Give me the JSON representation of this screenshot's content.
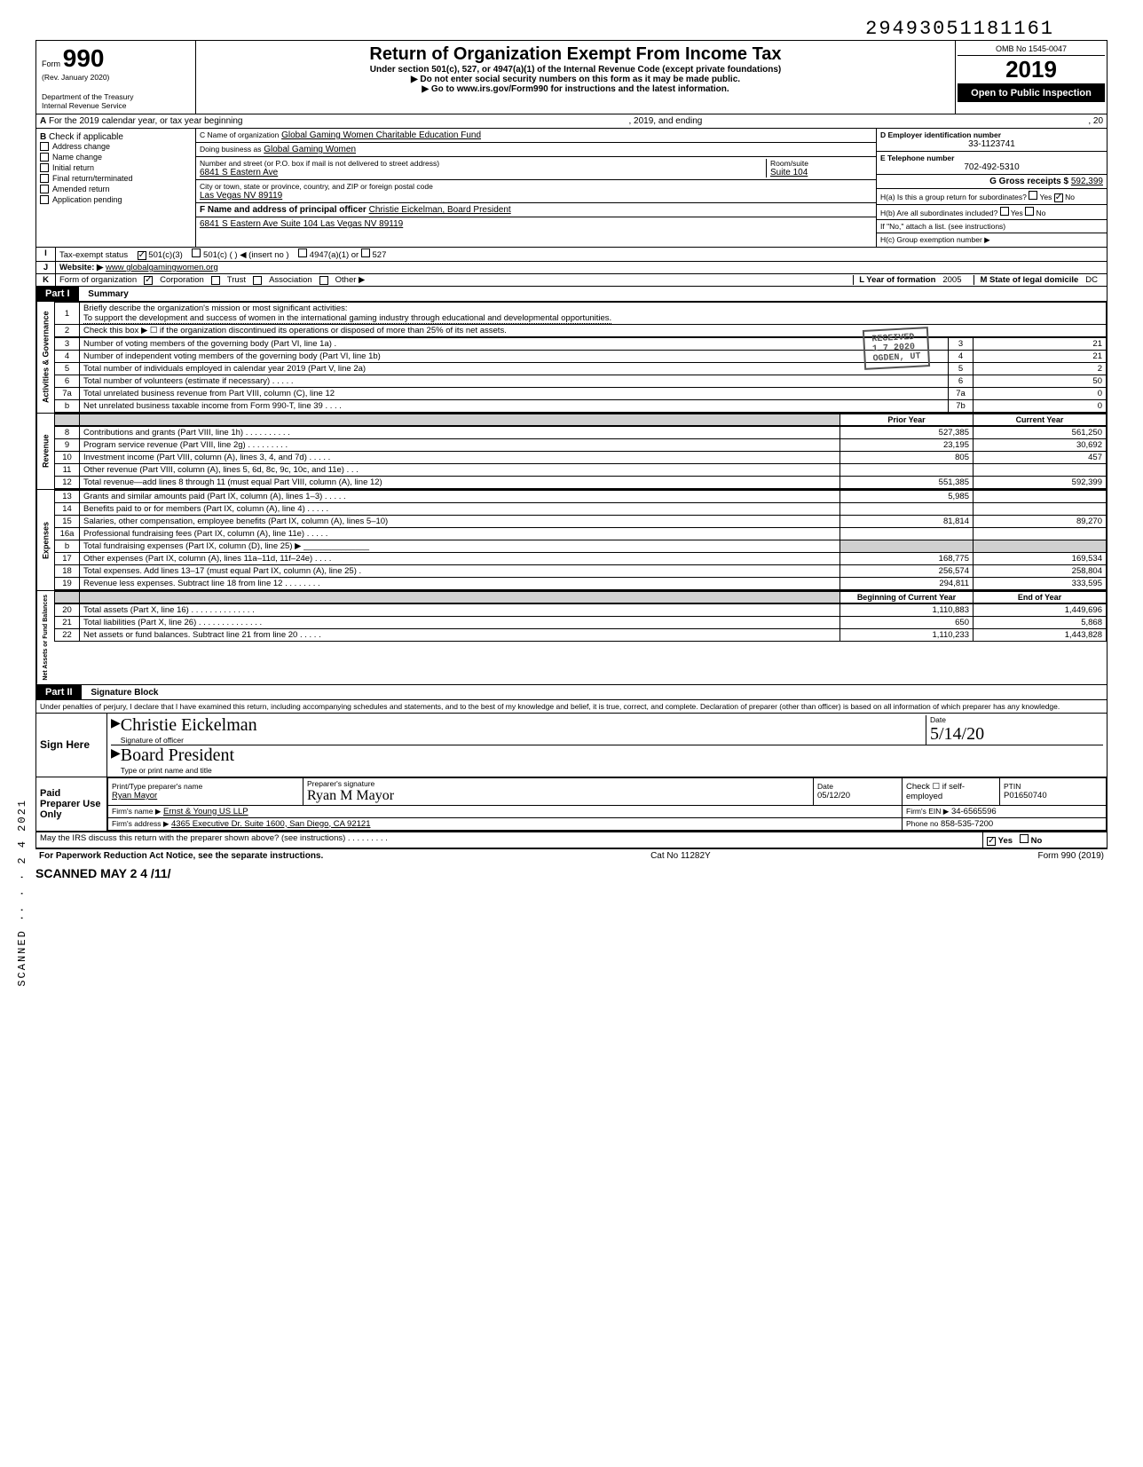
{
  "top_number": "29493051181161",
  "form": {
    "number": "990",
    "label": "Form",
    "rev": "(Rev. January 2020)",
    "dept": "Department of the Treasury",
    "irs": "Internal Revenue Service"
  },
  "title": "Return of Organization Exempt From Income Tax",
  "subtitle1": "Under section 501(c), 527, or 4947(a)(1) of the Internal Revenue Code (except private foundations)",
  "subtitle2": "▶ Do not enter social security numbers on this form as it may be made public.",
  "subtitle3": "▶ Go to www.irs.gov/Form990 for instructions and the latest information.",
  "omb": "OMB No 1545-0047",
  "year": "2019",
  "open_public": "Open to Public Inspection",
  "rowA": {
    "label": "A",
    "text": "For the 2019 calendar year, or tax year beginning",
    "mid": ", 2019, and ending",
    "end": ", 20"
  },
  "b": {
    "label": "B",
    "check_label": "Check if applicable",
    "items": [
      "Address change",
      "Name change",
      "Initial return",
      "Final return/terminated",
      "Amended return",
      "Application pending"
    ]
  },
  "c": {
    "name_label": "C Name of organization",
    "name": "Global Gaming Women Charitable Education Fund",
    "dba_label": "Doing business as",
    "dba": "Global Gaming Women",
    "street_label": "Number and street (or P.O. box if mail is not delivered to street address)",
    "street": "6841 S Eastern Ave",
    "room_label": "Room/suite",
    "room": "Suite 104",
    "city_label": "City or town, state or province, country, and ZIP or foreign postal code",
    "city": "Las Vegas NV 89119"
  },
  "d": {
    "label": "D Employer identification number",
    "value": "33-1123741"
  },
  "e": {
    "label": "E Telephone number",
    "value": "702-492-5310"
  },
  "g": {
    "label": "G Gross receipts $",
    "value": "592,399"
  },
  "f": {
    "label": "F Name and address of principal officer",
    "name": "Christie Eickelman, Board President",
    "addr": "6841 S Eastern Ave Suite 104 Las Vegas NV 89119"
  },
  "h": {
    "a": "H(a) Is this a group return for subordinates?",
    "a_no": true,
    "b": "H(b) Are all subordinates included?",
    "b_note": "If \"No,\" attach a list. (see instructions)",
    "c": "H(c) Group exemption number ▶"
  },
  "i": {
    "label": "I",
    "tax_exempt": "Tax-exempt status",
    "c3": "501(c)(3)",
    "c": "501(c) (",
    "insert": ") ◀ (insert no )",
    "a1": "4947(a)(1) or",
    "s527": "527"
  },
  "j": {
    "label": "J",
    "website_label": "Website: ▶",
    "website": "www globalgamingwomen.org"
  },
  "k": {
    "label": "K",
    "form_org": "Form of organization",
    "corp": "Corporation",
    "trust": "Trust",
    "assoc": "Association",
    "other": "Other ▶",
    "l_label": "L Year of formation",
    "l_val": "2005",
    "m_label": "M State of legal domicile",
    "m_val": "DC"
  },
  "part1": {
    "title": "Part I",
    "title2": "Summary",
    "line1_label": "Briefly describe the organization's mission or most significant activities:",
    "line1_text": "To support the development and success of women in the international gaming industry through educational and developmental opportunities.",
    "line2": "Check this box ▶ ☐ if the organization discontinued its operations or disposed of more than 25% of its net assets.",
    "stamp1": "RECEIVED",
    "stamp2": "1 7 2020",
    "stamp3": "OGDEN, UT",
    "rows_gov": [
      {
        "n": "3",
        "t": "Number of voting members of the governing body (Part VI, line 1a) .",
        "r": "3",
        "v": "21"
      },
      {
        "n": "4",
        "t": "Number of independent voting members of the governing body (Part VI, line 1b)",
        "r": "4",
        "v": "21"
      },
      {
        "n": "5",
        "t": "Total number of individuals employed in calendar year 2019 (Part V, line 2a)",
        "r": "5",
        "v": "2"
      },
      {
        "n": "6",
        "t": "Total number of volunteers (estimate if necessary)  .  .  .  .  .",
        "r": "6",
        "v": "50"
      },
      {
        "n": "7a",
        "t": "Total unrelated business revenue from Part VIII, column (C), line 12",
        "r": "7a",
        "v": "0"
      },
      {
        "n": "b",
        "t": "Net unrelated business taxable income from Form 990-T, line 39  .  .  .  .",
        "r": "7b",
        "v": "0"
      }
    ],
    "col_headers": [
      "Prior Year",
      "Current Year"
    ],
    "revenue_label": "Revenue",
    "revenue": [
      {
        "n": "8",
        "t": "Contributions and grants (Part VIII, line 1h) .  .  .  .  .  .  .  .  .  .",
        "p": "527,385",
        "c": "561,250"
      },
      {
        "n": "9",
        "t": "Program service revenue (Part VIII, line 2g)  .  .  .  .  .  .  .  .  .",
        "p": "23,195",
        "c": "30,692"
      },
      {
        "n": "10",
        "t": "Investment income (Part VIII, column (A), lines 3, 4, and 7d)  .  .  .  .  .",
        "p": "805",
        "c": "457"
      },
      {
        "n": "11",
        "t": "Other revenue (Part VIII, column (A), lines 5, 6d, 8c, 9c, 10c, and 11e) .  .  .",
        "p": "",
        "c": ""
      },
      {
        "n": "12",
        "t": "Total revenue—add lines 8 through 11 (must equal Part VIII, column (A), line 12)",
        "p": "551,385",
        "c": "592,399"
      }
    ],
    "expenses_label": "Expenses",
    "expenses": [
      {
        "n": "13",
        "t": "Grants and similar amounts paid (Part IX, column (A), lines 1–3) .  .  .  .  .",
        "p": "5,985",
        "c": ""
      },
      {
        "n": "14",
        "t": "Benefits paid to or for members (Part IX, column (A), line 4)  .  .  .  .  .",
        "p": "",
        "c": ""
      },
      {
        "n": "15",
        "t": "Salaries, other compensation, employee benefits (Part IX, column (A), lines 5–10)",
        "p": "81,814",
        "c": "89,270"
      },
      {
        "n": "16a",
        "t": "Professional fundraising fees (Part IX, column (A), line 11e)  .  .  .  .  .",
        "p": "",
        "c": ""
      },
      {
        "n": "b",
        "t": "Total fundraising expenses (Part IX, column (D), line 25) ▶ ______________",
        "p": "shade",
        "c": "shade"
      },
      {
        "n": "17",
        "t": "Other expenses (Part IX, column (A), lines 11a–11d, 11f–24e)  .  .  .  .",
        "p": "168,775",
        "c": "169,534"
      },
      {
        "n": "18",
        "t": "Total expenses. Add lines 13–17 (must equal Part IX, column (A), line 25)  .",
        "p": "256,574",
        "c": "258,804"
      },
      {
        "n": "19",
        "t": "Revenue less expenses. Subtract line 18 from line 12 .  .  .  .  .  .  .  .",
        "p": "294,811",
        "c": "333,595"
      }
    ],
    "net_label": "Net Assets or Fund Balances",
    "net_headers": [
      "Beginning of Current Year",
      "End of Year"
    ],
    "net": [
      {
        "n": "20",
        "t": "Total assets (Part X, line 16)  .  .  .  .  .  .  .  .  .  .  .  .  .  .",
        "p": "1,110,883",
        "c": "1,449,696"
      },
      {
        "n": "21",
        "t": "Total liabilities (Part X, line 26) .  .  .  .  .  .  .  .  .  .  .  .  .  .",
        "p": "650",
        "c": "5,868"
      },
      {
        "n": "22",
        "t": "Net assets or fund balances. Subtract line 21 from line 20  .  .  .  .  .",
        "p": "1,110,233",
        "c": "1,443,828"
      }
    ]
  },
  "part2": {
    "title": "Part II",
    "title2": "Signature Block",
    "perjury": "Under penalties of perjury, I declare that I have examined this return, including accompanying schedules and statements, and to the best of my knowledge and belief, it is true, correct, and complete. Declaration of preparer (other than officer) is based on all information of which preparer has any knowledge.",
    "sign_here": "Sign Here",
    "sig_officer_label": "Signature of officer",
    "sig_officer": "Christie Eickelman",
    "sig_date_label": "Date",
    "sig_date": "5/14/20",
    "title_label": "Type or print name and title",
    "title_val": "Board President",
    "paid_prep": "Paid Preparer Use Only",
    "prep_name_label": "Print/Type preparer's name",
    "prep_name": "Ryan Mayor",
    "prep_sig_label": "Preparer's signature",
    "prep_sig": "Ryan M Mayor",
    "prep_date_label": "Date",
    "prep_date": "05/12/20",
    "check_self": "Check ☐ if self-employed",
    "ptin_label": "PTIN",
    "ptin": "P01650740",
    "firm_name_label": "Firm's name ▶",
    "firm_name": "Ernst & Young US LLP",
    "firm_ein_label": "Firm's EIN ▶",
    "firm_ein": "34-6565596",
    "firm_addr_label": "Firm's address ▶",
    "firm_addr": "4365 Executive Dr. Suite 1600, San Diego, CA 92121",
    "phone_label": "Phone no",
    "phone": "858-535-7200",
    "may_irs": "May the IRS discuss this return with the preparer shown above? (see instructions)  .  .  .  .  .  .  .  .  .",
    "yes": "Yes",
    "no": "No"
  },
  "footer": {
    "paperwork": "For Paperwork Reduction Act Notice, see the separate instructions.",
    "cat": "Cat No 11282Y",
    "form": "Form 990 (2019)"
  },
  "scanned_vert": "SCANNED   ·· · ·  2 4  2021",
  "scanned_bottom": "SCANNED MAY 2 4 /11/"
}
